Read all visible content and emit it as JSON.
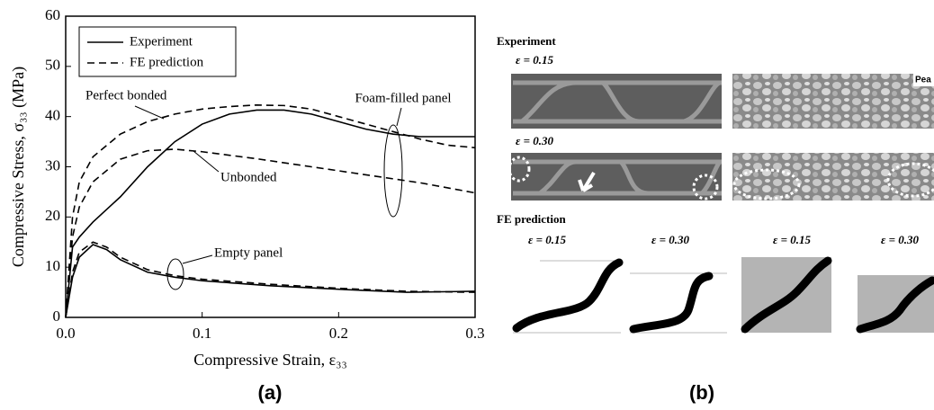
{
  "chart_data": {
    "type": "line",
    "x_label": "Compressive Strain, ε₃₃",
    "y_label": "Compressive Stress, σ₃₃ (MPa)",
    "xlim": [
      0,
      0.3
    ],
    "ylim": [
      0,
      60
    ],
    "xticks": [
      {
        "value": 0,
        "label": "0.0"
      },
      0.1,
      0.2,
      0.3
    ],
    "yticks": [
      0,
      10,
      20,
      30,
      40,
      50,
      60
    ],
    "legend": [
      {
        "label": "Experiment",
        "style": "solid"
      },
      {
        "label": "FE prediction",
        "style": "dashed"
      }
    ],
    "legend_position": "upper left",
    "annotations": [
      "Perfect bonded",
      "Unbonded",
      "Foam-filled panel",
      "Empty panel"
    ],
    "series": [
      {
        "style": "solid",
        "color": "#000000",
        "x": [
          0,
          0.005,
          0.01,
          0.02,
          0.04,
          0.06,
          0.08,
          0.1,
          0.12,
          0.14,
          0.16,
          0.18,
          0.2,
          0.22,
          0.24,
          0.26,
          0.28,
          0.3
        ],
        "values": [
          0,
          14,
          16,
          19,
          24,
          30,
          35,
          38.5,
          40.5,
          41.3,
          41.3,
          40.5,
          39,
          37.5,
          36.5,
          36,
          36,
          36
        ]
      },
      {
        "style": "dashed",
        "color": "#000000",
        "x": [
          0,
          0.005,
          0.01,
          0.02,
          0.04,
          0.06,
          0.08,
          0.1,
          0.12,
          0.14,
          0.16,
          0.18,
          0.2,
          0.22,
          0.24,
          0.26,
          0.28,
          0.3
        ],
        "values": [
          0,
          20,
          27,
          32,
          36.5,
          39,
          40.5,
          41.5,
          42,
          42.3,
          42.2,
          41.5,
          40,
          38.5,
          37,
          35.5,
          34.3,
          33.8
        ]
      },
      {
        "style": "dashed",
        "color": "#000000",
        "x": [
          0,
          0.005,
          0.01,
          0.02,
          0.04,
          0.06,
          0.08,
          0.1,
          0.12,
          0.14,
          0.16,
          0.18,
          0.2,
          0.22,
          0.24,
          0.26,
          0.28,
          0.3
        ],
        "values": [
          0,
          16,
          22,
          27,
          31.5,
          33.2,
          33.5,
          33,
          32.3,
          31.6,
          30.8,
          30,
          29.2,
          28.4,
          27.6,
          26.8,
          25.8,
          24.8
        ]
      },
      {
        "style": "solid",
        "color": "#000000",
        "x": [
          0,
          0.005,
          0.01,
          0.02,
          0.03,
          0.04,
          0.06,
          0.08,
          0.1,
          0.15,
          0.2,
          0.25,
          0.3
        ],
        "values": [
          0,
          8,
          12,
          14.5,
          13.5,
          11.5,
          9,
          8,
          7.3,
          6.3,
          5.6,
          5,
          5.2
        ]
      },
      {
        "style": "dashed",
        "color": "#000000",
        "x": [
          0,
          0.005,
          0.01,
          0.02,
          0.03,
          0.04,
          0.06,
          0.08,
          0.1,
          0.15,
          0.2,
          0.25,
          0.3
        ],
        "values": [
          0,
          9,
          13,
          15,
          14,
          12,
          9.5,
          8.3,
          7.6,
          6.6,
          5.8,
          5.2,
          5
        ]
      }
    ]
  },
  "panel_labels": [
    "(a)",
    "(b)"
  ],
  "panel_b": {
    "experiment": "Experiment",
    "exp_strains": [
      "ε = 0.15",
      "ε = 0.30"
    ],
    "photo_tag": "Pea",
    "fe": "FE prediction",
    "fe_strains": [
      "ε = 0.15",
      "ε = 0.30",
      "ε = 0.15",
      "ε = 0.30"
    ]
  }
}
